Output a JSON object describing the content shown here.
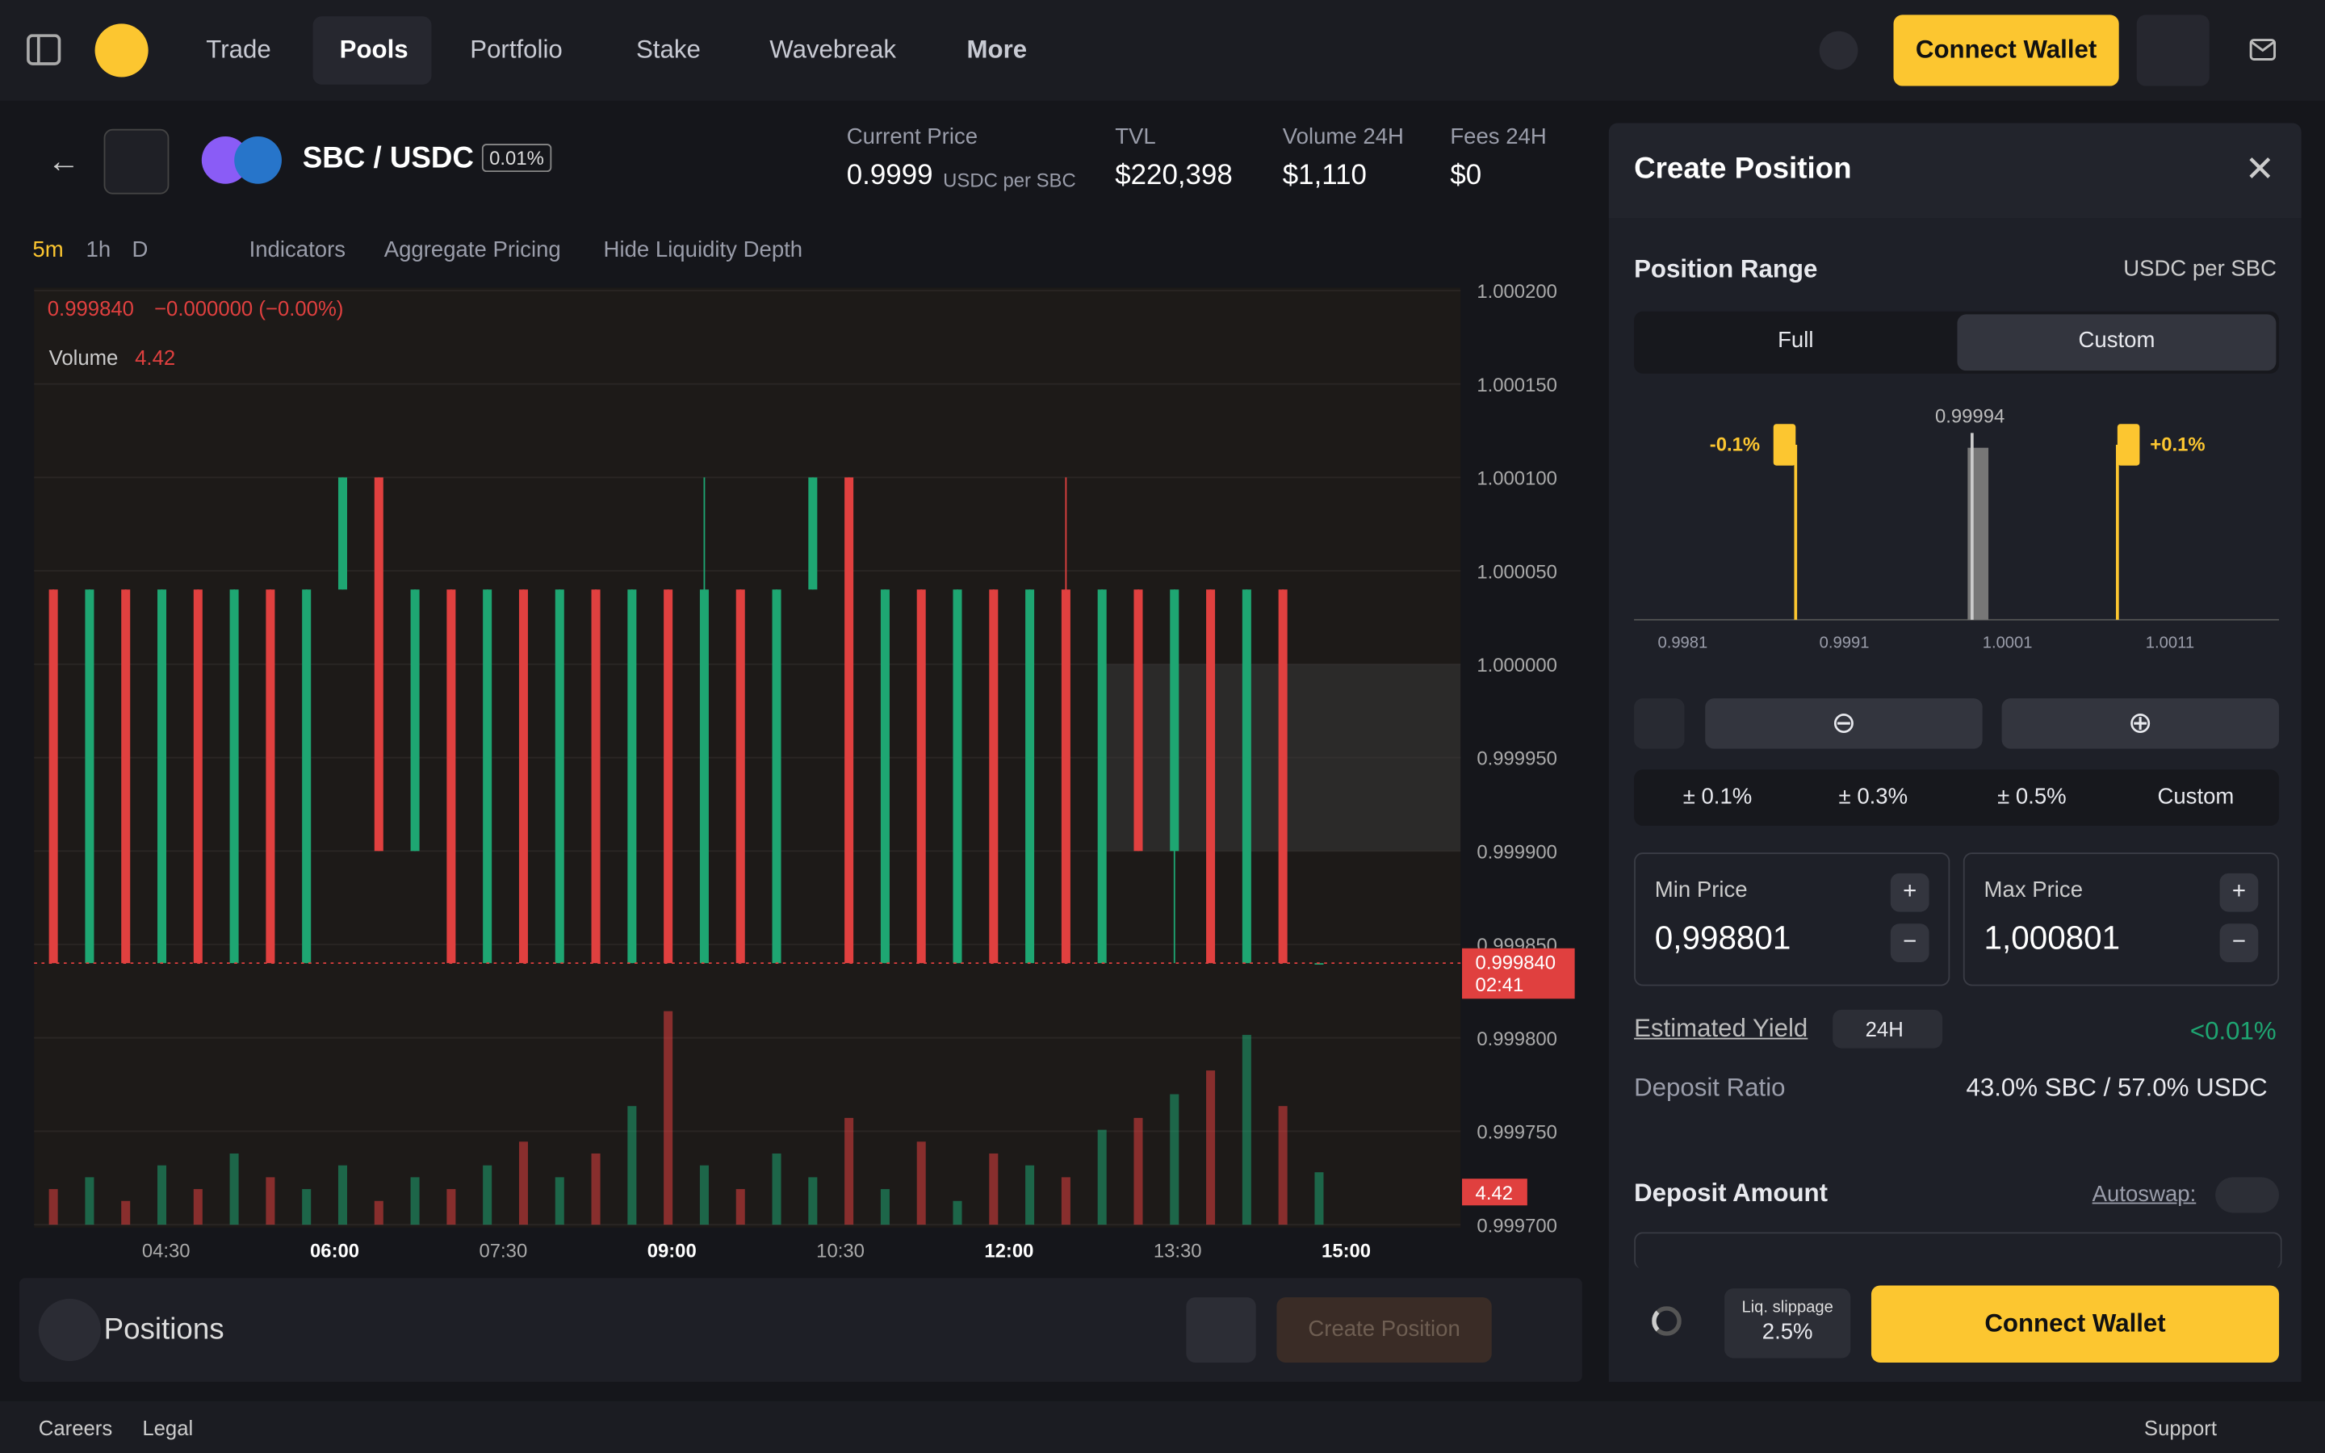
{
  "nav": {
    "items": [
      "Trade",
      "Pools",
      "Portfolio",
      "Stake",
      "Wavebreak",
      "More"
    ],
    "connect": "Connect Wallet"
  },
  "pair": {
    "name": "SBC / USDC",
    "fee": "0.01%"
  },
  "stats": [
    {
      "label": "Current Price",
      "value": "0.9999",
      "unit": "USDC per SBC"
    },
    {
      "label": "TVL",
      "value": "$220,398"
    },
    {
      "label": "Volume 24H",
      "value": "$1,110"
    },
    {
      "label": "Fees 24H",
      "value": "$0"
    }
  ],
  "toolbar": {
    "intervals": [
      "5m",
      "1h",
      "D"
    ],
    "indicators": "Indicators",
    "aggregate": "Aggregate Pricing",
    "hide": "Hide Liquidity Depth"
  },
  "chart": {
    "type": "candlestick",
    "legend": "0.999840",
    "change": "−0.000000 (−0.00%)",
    "volume_label": "Volume",
    "volume_value": "4.42",
    "last_price": "0.999840",
    "countdown": "02:41",
    "ylim": [
      0.9997,
      1.0002
    ],
    "yticks": [
      {
        "value": 1.0002,
        "label": "1.000200"
      },
      {
        "value": 1.00015,
        "label": "1.000150"
      },
      {
        "value": 1.0001,
        "label": "1.000100"
      },
      {
        "value": 1.00005,
        "label": "1.000050"
      },
      {
        "value": 1.0,
        "label": "1.000000"
      },
      {
        "value": 0.99995,
        "label": "0.999950"
      },
      {
        "value": 0.9999,
        "label": "0.999900"
      },
      {
        "value": 0.99985,
        "label": "0.999850"
      },
      {
        "value": 0.9998,
        "label": "0.999800"
      },
      {
        "value": 0.99975,
        "label": "0.999750"
      },
      {
        "value": 0.9997,
        "label": "0.999700"
      }
    ],
    "xticks": [
      "04:30",
      "06:00",
      "07:30",
      "09:00",
      "10:30",
      "12:00",
      "13:30",
      "15:00"
    ],
    "up_color": "#1ea672",
    "down_color": "#e0403f",
    "candles": [
      [
        1.00004,
        1.00004,
        0.99984,
        0.99984
      ],
      [
        0.99984,
        1.00004,
        0.99984,
        1.00004
      ],
      [
        1.00004,
        1.00004,
        0.99984,
        0.99984
      ],
      [
        0.99984,
        1.00004,
        0.99984,
        1.00004
      ],
      [
        1.00004,
        1.00004,
        0.99984,
        0.99984
      ],
      [
        0.99984,
        1.00004,
        0.99984,
        1.00004
      ],
      [
        1.00004,
        1.00004,
        0.99984,
        0.99984
      ],
      [
        0.99984,
        1.00004,
        0.99984,
        1.00004
      ],
      [
        1.00004,
        1.0001,
        1.00004,
        1.0001
      ],
      [
        1.0001,
        1.0001,
        0.9999,
        0.9999
      ],
      [
        0.9999,
        1.00004,
        0.9999,
        1.00004
      ],
      [
        1.00004,
        1.00004,
        0.99984,
        0.99984
      ],
      [
        0.99984,
        1.00004,
        0.99984,
        1.00004
      ],
      [
        1.00004,
        1.00004,
        0.99984,
        0.99984
      ],
      [
        0.99984,
        1.00004,
        0.99984,
        1.00004
      ],
      [
        1.00004,
        1.00004,
        0.99984,
        0.99984
      ],
      [
        0.99984,
        1.00004,
        0.99984,
        1.00004
      ],
      [
        1.00004,
        1.00004,
        0.99984,
        0.99984
      ],
      [
        0.99984,
        1.0001,
        0.99984,
        1.00004
      ],
      [
        1.00004,
        1.00004,
        0.99984,
        0.99984
      ],
      [
        0.99984,
        1.00004,
        0.99984,
        1.00004
      ],
      [
        1.00004,
        1.0001,
        1.00004,
        1.0001
      ],
      [
        1.0001,
        1.0001,
        0.99984,
        0.99984
      ],
      [
        0.99984,
        1.00004,
        0.99984,
        1.00004
      ],
      [
        1.00004,
        1.00004,
        0.99984,
        0.99984
      ],
      [
        0.99984,
        1.00004,
        0.99984,
        1.00004
      ],
      [
        1.00004,
        1.00004,
        0.99984,
        0.99984
      ],
      [
        0.99984,
        1.00004,
        0.99984,
        1.00004
      ],
      [
        1.00004,
        1.0001,
        0.99984,
        0.99984
      ],
      [
        0.99984,
        1.00004,
        0.99984,
        1.00004
      ],
      [
        1.00004,
        1.00004,
        0.9999,
        0.9999
      ],
      [
        0.9999,
        1.00004,
        0.99984,
        1.00004
      ],
      [
        1.00004,
        1.00004,
        0.99984,
        0.99984
      ],
      [
        0.99984,
        1.00004,
        0.99984,
        1.00004
      ],
      [
        1.00004,
        1.00004,
        0.99984,
        0.99984
      ],
      [
        0.99984,
        0.99984,
        0.99984,
        0.99984
      ]
    ],
    "volume_ylim": [
      0,
      20
    ],
    "volume": [
      3,
      4,
      2,
      5,
      3,
      6,
      4,
      3,
      5,
      2,
      4,
      3,
      5,
      7,
      4,
      6,
      10,
      18,
      5,
      3,
      6,
      4,
      9,
      3,
      7,
      2,
      6,
      5,
      4,
      8,
      9,
      11,
      13,
      16,
      10,
      4.42
    ]
  },
  "panel": {
    "title": "Create Position",
    "range_title": "Position Range",
    "range_unit": "USDC per SBC",
    "tabs": [
      "Full",
      "Custom"
    ],
    "range_chart": {
      "current": "0.99994",
      "low": "-0.1%",
      "high": "+0.1%",
      "axis": [
        "0.9981",
        "0.9991",
        "1.0001",
        "1.0011"
      ]
    },
    "presets": [
      "± 0.1%",
      "± 0.3%",
      "± 0.5%",
      "Custom"
    ],
    "min_label": "Min Price",
    "min_value": "0,998801",
    "max_label": "Max Price",
    "max_value": "1,000801",
    "yield_label": "Estimated Yield",
    "yield_period": "24H",
    "yield_value": "<0.01%",
    "ratio_label": "Deposit Ratio",
    "ratio_value": "43.0% SBC / 57.0% USDC",
    "deposit_label": "Deposit Amount",
    "autoswap": "Autoswap:",
    "slippage_label": "Liq. slippage",
    "slippage_value": "2.5%",
    "connect": "Connect Wallet"
  },
  "positions": {
    "title": "Positions",
    "create": "Create Position"
  },
  "footer": {
    "careers": "Careers",
    "legal": "Legal",
    "support": "Support"
  }
}
